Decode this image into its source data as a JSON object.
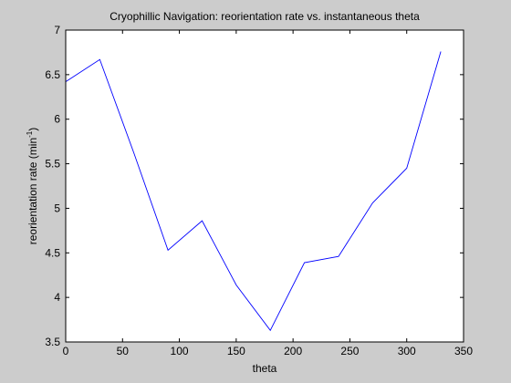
{
  "chart_data": {
    "type": "line",
    "title": "Cryophillic Navigation: reorientation rate vs. instantaneous theta",
    "xlabel": "theta",
    "ylabel_main": "reorientation rate (min",
    "ylabel_sup": "-1",
    "ylabel_tail": ")",
    "xlim": [
      0,
      350
    ],
    "ylim": [
      3.5,
      7
    ],
    "xticks": [
      0,
      50,
      100,
      150,
      200,
      250,
      300,
      350
    ],
    "yticks": [
      3.5,
      4,
      4.5,
      5,
      5.5,
      6,
      6.5,
      7
    ],
    "xtick_labels": [
      "0",
      "50",
      "100",
      "150",
      "200",
      "250",
      "300",
      "350"
    ],
    "ytick_labels": [
      "3.5",
      "4",
      "4.5",
      "5",
      "5.5",
      "6",
      "6.5",
      "7"
    ],
    "grid": false,
    "legend": "none",
    "series": [
      {
        "color": "#0000ff",
        "x": [
          0,
          30,
          60,
          90,
          120,
          150,
          180,
          210,
          240,
          270,
          300,
          330
        ],
        "y": [
          6.42,
          6.67,
          5.62,
          4.53,
          4.86,
          4.14,
          3.63,
          4.39,
          4.46,
          5.06,
          5.45,
          6.76
        ]
      }
    ]
  },
  "colors": {
    "figure_background": "#cccccc",
    "axes_background": "#ffffff",
    "axes_edge": "#000000",
    "line": "#0000ff"
  }
}
